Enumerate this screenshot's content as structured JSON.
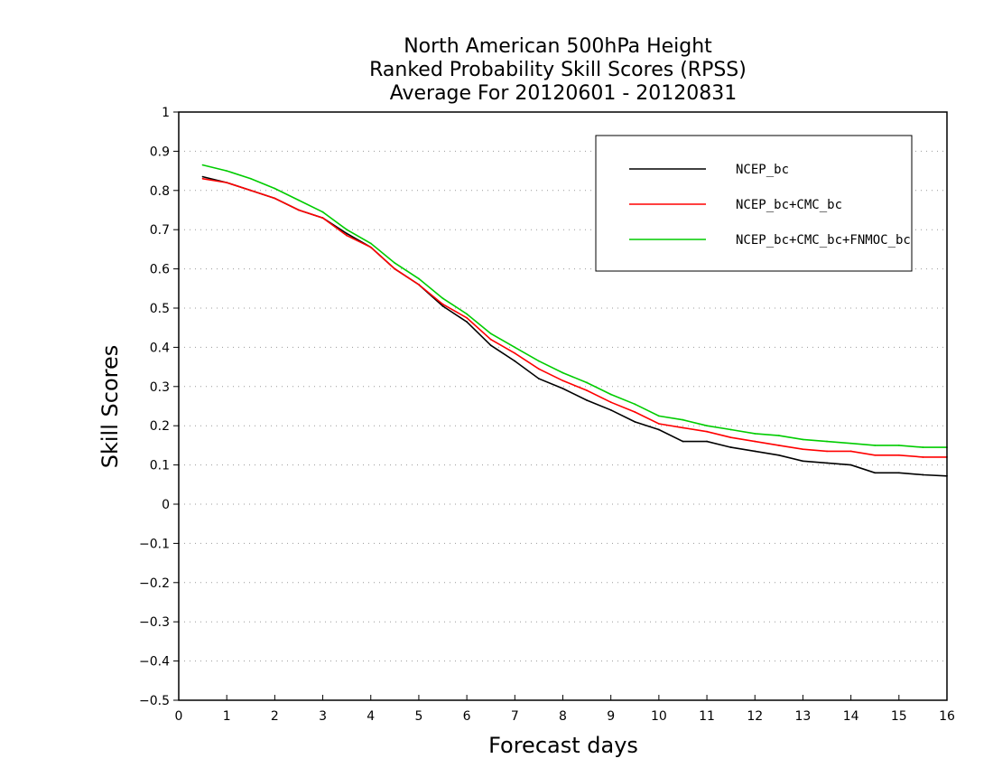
{
  "chart_data": {
    "type": "line",
    "title_lines": [
      "North American 500hPa Height",
      "Ranked Probability Skill Scores (RPSS)",
      "Average For 20120601 - 20120831"
    ],
    "xlabel": "Forecast days",
    "ylabel": "Skill Scores",
    "xlim": [
      0,
      16
    ],
    "ylim": [
      -0.5,
      1
    ],
    "xticks": [
      0,
      1,
      2,
      3,
      4,
      5,
      6,
      7,
      8,
      9,
      10,
      11,
      12,
      13,
      14,
      15,
      16
    ],
    "yticks": [
      -0.5,
      -0.4,
      -0.3,
      -0.2,
      -0.1,
      0,
      0.1,
      0.2,
      0.3,
      0.4,
      0.5,
      0.6,
      0.7,
      0.8,
      0.9,
      1
    ],
    "ytick_labels": [
      "−0.5",
      "−0.4",
      "−0.3",
      "−0.2",
      "−0.1",
      "0",
      "0.1",
      "0.2",
      "0.3",
      "0.4",
      "0.5",
      "0.6",
      "0.7",
      "0.8",
      "0.9",
      "1"
    ],
    "grid": "horizontal dotted",
    "legend_position": "top-right",
    "x": [
      0.5,
      1,
      1.5,
      2,
      2.5,
      3,
      3.5,
      4,
      4.5,
      5,
      5.5,
      6,
      6.5,
      7,
      7.5,
      8,
      8.5,
      9,
      9.5,
      10,
      10.5,
      11,
      11.5,
      12,
      12.5,
      13,
      13.5,
      14,
      14.5,
      15,
      15.5,
      16
    ],
    "series": [
      {
        "name": "NCEP_bc",
        "color": "#000000",
        "values": [
          0.835,
          0.82,
          0.8,
          0.78,
          0.75,
          0.73,
          0.69,
          0.655,
          0.6,
          0.56,
          0.505,
          0.465,
          0.405,
          0.365,
          0.32,
          0.295,
          0.265,
          0.24,
          0.21,
          0.19,
          0.16,
          0.16,
          0.145,
          0.135,
          0.125,
          0.11,
          0.105,
          0.1,
          0.08,
          0.08,
          0.075,
          0.072
        ]
      },
      {
        "name": "NCEP_bc+CMC_bc",
        "color": "#ff0000",
        "values": [
          0.83,
          0.82,
          0.8,
          0.78,
          0.75,
          0.73,
          0.685,
          0.655,
          0.6,
          0.56,
          0.51,
          0.475,
          0.42,
          0.385,
          0.345,
          0.315,
          0.29,
          0.26,
          0.235,
          0.205,
          0.195,
          0.185,
          0.17,
          0.16,
          0.15,
          0.14,
          0.135,
          0.135,
          0.125,
          0.125,
          0.12,
          0.12
        ]
      },
      {
        "name": "NCEP_bc+CMC_bc+FNMOC_bc",
        "color": "#00cc00",
        "values": [
          0.865,
          0.85,
          0.83,
          0.805,
          0.775,
          0.745,
          0.7,
          0.665,
          0.615,
          0.575,
          0.525,
          0.485,
          0.435,
          0.4,
          0.365,
          0.335,
          0.31,
          0.28,
          0.255,
          0.225,
          0.215,
          0.2,
          0.19,
          0.18,
          0.175,
          0.165,
          0.16,
          0.155,
          0.15,
          0.15,
          0.145,
          0.145
        ]
      }
    ]
  }
}
